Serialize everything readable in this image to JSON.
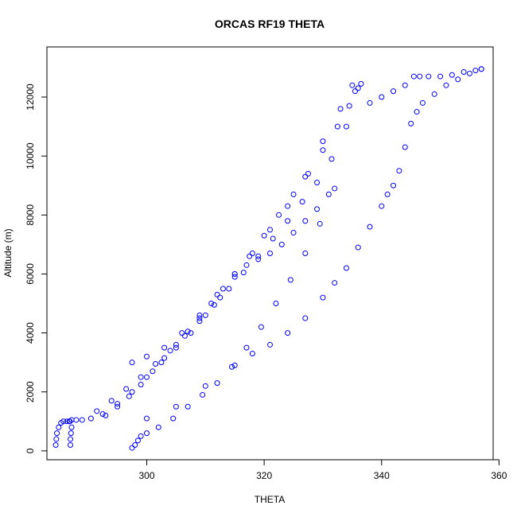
{
  "chart_data": {
    "type": "scatter",
    "title": "ORCAS RF19 THETA",
    "xlabel": "THETA",
    "ylabel": "Altitude (m)",
    "xlim": [
      283,
      359
    ],
    "ylim": [
      -300,
      13700
    ],
    "xticks": [
      300,
      320,
      340,
      360
    ],
    "yticks": [
      0,
      2000,
      4000,
      6000,
      8000,
      10000,
      12000
    ],
    "color": "#0000ff",
    "marker": "open-circle",
    "series": [
      {
        "name": "",
        "x": [
          284.5,
          284.6,
          284.7,
          285.0,
          285.4,
          285.8,
          286.4,
          286.8,
          287.2,
          286.9,
          288.0,
          290.5,
          292.5,
          295.0,
          297.5,
          300.0,
          302.5,
          305.0,
          307.5,
          310.0,
          312.5,
          315.0,
          317.5,
          320.0,
          322.5,
          325.0,
          327.5,
          330.0,
          332.5,
          334.5,
          335.5,
          336.5
        ],
        "y": [
          200,
          400,
          600,
          800,
          950,
          1000,
          1000,
          1000,
          1050,
          1000,
          1050,
          1100,
          1250,
          1600,
          2000,
          2500,
          3000,
          3500,
          4000,
          4600,
          5200,
          5900,
          6600,
          7300,
          8000,
          8700,
          9400,
          10200,
          11000,
          11700,
          12200,
          12450
        ]
      },
      {
        "name": "",
        "x": [
          287.0,
          287.0,
          287.1,
          287.2,
          289.0,
          291.5,
          294.0,
          296.5,
          299.0,
          301.5,
          304.0,
          306.5,
          309.0,
          311.5,
          314.0,
          316.5,
          319.0,
          321.5,
          324.0,
          326.5,
          329.0,
          331.5,
          334.0,
          336.0
        ],
        "y": [
          200,
          400,
          600,
          800,
          1050,
          1350,
          1700,
          2100,
          2500,
          2950,
          3400,
          3900,
          4400,
          4950,
          5500,
          6050,
          6600,
          7200,
          7800,
          8450,
          9100,
          9900,
          11000,
          12300
        ]
      },
      {
        "name": "",
        "x": [
          297.5,
          298.0,
          298.5,
          299.0,
          300.0,
          302.0,
          304.5,
          307.0,
          309.5,
          312.0,
          314.5,
          317.0,
          319.5,
          322.0,
          324.5,
          327.0,
          329.5,
          332.0
        ],
        "y": [
          100,
          200,
          350,
          500,
          600,
          800,
          1100,
          1500,
          1900,
          2300,
          2850,
          3500,
          4200,
          5000,
          5800,
          6700,
          7700,
          8900
        ]
      },
      {
        "name": "",
        "x": [
          293.0,
          295.0,
          297.0,
          299.0,
          301.0,
          303.0,
          305.0,
          307.0,
          309.0,
          311.0,
          313.0,
          315.0,
          317.0,
          319.0,
          321.0,
          323.0,
          325.0,
          327.0,
          329.0,
          331.0
        ],
        "y": [
          1200,
          1500,
          1850,
          2250,
          2700,
          3150,
          3600,
          4050,
          4500,
          5000,
          5500,
          6000,
          6300,
          6500,
          6700,
          7000,
          7400,
          7800,
          8200,
          8700
        ]
      },
      {
        "name": "",
        "x": [
          297.5,
          300.0,
          303.0,
          306.0,
          309.0,
          312.0,
          315.0,
          318.0,
          321.0,
          324.0,
          327.0,
          330.0,
          333.0,
          335.0
        ],
        "y": [
          3000,
          3200,
          3500,
          4000,
          4600,
          5300,
          6000,
          6700,
          7500,
          8300,
          9300,
          10500,
          11600,
          12400
        ]
      },
      {
        "name": "",
        "x": [
          300.0,
          305.0,
          310.0,
          315.0,
          318.0,
          321.0,
          324.0,
          327.0,
          330.0,
          332.0,
          334.0,
          336.0,
          338.0,
          340.0,
          341.0,
          342.0,
          343.0,
          344.0,
          345.0,
          346.0,
          347.0,
          349.0,
          351.0,
          353.0,
          355.0,
          357.0
        ],
        "y": [
          1100,
          1500,
          2200,
          2900,
          3300,
          3600,
          4000,
          4500,
          5200,
          5700,
          6200,
          6900,
          7600,
          8300,
          8700,
          9000,
          9500,
          10300,
          11100,
          11500,
          11800,
          12100,
          12400,
          12600,
          12800,
          12950
        ]
      },
      {
        "name": "",
        "x": [
          338.0,
          340.0,
          342.0,
          344.0,
          345.5,
          346.5,
          348.0,
          350.0,
          352.0,
          354.0,
          356.0,
          357.0
        ],
        "y": [
          11800,
          12000,
          12200,
          12400,
          12700,
          12700,
          12700,
          12700,
          12750,
          12850,
          12900,
          12950
        ]
      }
    ]
  }
}
